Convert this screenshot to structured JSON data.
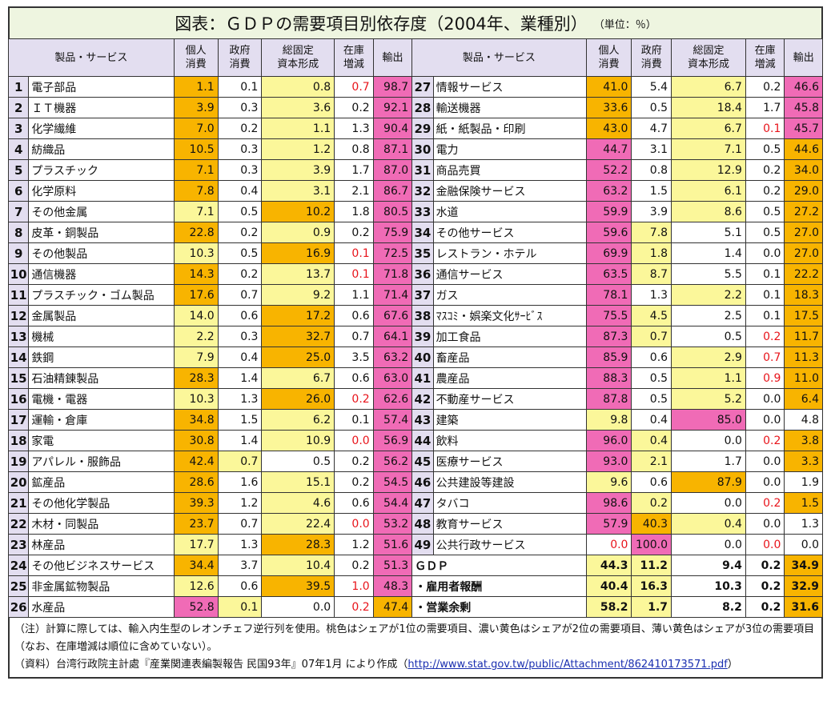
{
  "title": "図表：ＧＤＰの需要項目別依存度（2004年、業種別）",
  "unit": "（単位：％）",
  "headers": {
    "product": "製品・サービス",
    "c1a": "個人",
    "c1b": "消費",
    "c2a": "政府",
    "c2b": "消費",
    "c3a": "総固定",
    "c3b": "資本形成",
    "c4a": "在庫",
    "c4b": "増減",
    "c5": "輸出"
  },
  "colors": {
    "share1": "#f06bb6",
    "share2": "#f8b400",
    "share3": "#fbf79a",
    "negative_text": "#e8141b"
  },
  "left_rows": [
    {
      "no": "1",
      "name": "電子部品",
      "v": [
        "1.1",
        "0.1",
        "0.8",
        "0.7",
        "98.7"
      ],
      "c": [
        "c2",
        "",
        "c3",
        "red",
        "c1"
      ]
    },
    {
      "no": "2",
      "name": "ＩＴ機器",
      "v": [
        "3.9",
        "0.3",
        "3.6",
        "0.2",
        "92.1"
      ],
      "c": [
        "c2",
        "",
        "c3",
        "",
        "c1"
      ]
    },
    {
      "no": "3",
      "name": "化学繊維",
      "v": [
        "7.0",
        "0.2",
        "1.1",
        "1.3",
        "90.4"
      ],
      "c": [
        "c2",
        "",
        "c3",
        "",
        "c1"
      ]
    },
    {
      "no": "4",
      "name": "紡織品",
      "v": [
        "10.5",
        "0.3",
        "1.2",
        "0.8",
        "87.1"
      ],
      "c": [
        "c2",
        "",
        "c3",
        "",
        "c1"
      ]
    },
    {
      "no": "5",
      "name": "プラスチック",
      "v": [
        "7.1",
        "0.3",
        "3.9",
        "1.7",
        "87.0"
      ],
      "c": [
        "c2",
        "",
        "c3",
        "",
        "c1"
      ]
    },
    {
      "no": "6",
      "name": "化学原料",
      "v": [
        "7.8",
        "0.4",
        "3.1",
        "2.1",
        "86.7"
      ],
      "c": [
        "c2",
        "",
        "c3",
        "",
        "c1"
      ]
    },
    {
      "no": "7",
      "name": "その他金属",
      "v": [
        "7.1",
        "0.5",
        "10.2",
        "1.8",
        "80.5"
      ],
      "c": [
        "c3",
        "",
        "c2",
        "",
        "c1"
      ]
    },
    {
      "no": "8",
      "name": "皮革・銅製品",
      "v": [
        "22.8",
        "0.2",
        "0.9",
        "0.2",
        "75.9"
      ],
      "c": [
        "c2",
        "",
        "c3",
        "",
        "c1"
      ]
    },
    {
      "no": "9",
      "name": "その他製品",
      "v": [
        "10.3",
        "0.5",
        "16.9",
        "0.1",
        "72.5"
      ],
      "c": [
        "c3",
        "",
        "c2",
        "red",
        "c1"
      ]
    },
    {
      "no": "10",
      "name": "通信機器",
      "v": [
        "14.3",
        "0.2",
        "13.7",
        "0.1",
        "71.8"
      ],
      "c": [
        "c2",
        "",
        "c3",
        "red",
        "c1"
      ]
    },
    {
      "no": "11",
      "name": "プラスチック・ゴム製品",
      "v": [
        "17.6",
        "0.7",
        "9.2",
        "1.1",
        "71.4"
      ],
      "c": [
        "c2",
        "",
        "c3",
        "",
        "c1"
      ]
    },
    {
      "no": "12",
      "name": "金属製品",
      "v": [
        "14.0",
        "0.6",
        "17.2",
        "0.6",
        "67.6"
      ],
      "c": [
        "c3",
        "",
        "c2",
        "",
        "c1"
      ]
    },
    {
      "no": "13",
      "name": "機械",
      "v": [
        "2.2",
        "0.3",
        "32.7",
        "0.7",
        "64.1"
      ],
      "c": [
        "c3",
        "",
        "c2",
        "",
        "c1"
      ]
    },
    {
      "no": "14",
      "name": "鉄鋼",
      "v": [
        "7.9",
        "0.4",
        "25.0",
        "3.5",
        "63.2"
      ],
      "c": [
        "c3",
        "",
        "c2",
        "",
        "c1"
      ]
    },
    {
      "no": "15",
      "name": "石油精錬製品",
      "v": [
        "28.3",
        "1.4",
        "6.7",
        "0.6",
        "63.0"
      ],
      "c": [
        "c2",
        "",
        "c3",
        "",
        "c1"
      ]
    },
    {
      "no": "16",
      "name": "電機・電器",
      "v": [
        "10.3",
        "1.3",
        "26.0",
        "0.2",
        "62.6"
      ],
      "c": [
        "c3",
        "",
        "c2",
        "red",
        "c1"
      ]
    },
    {
      "no": "17",
      "name": "運輸・倉庫",
      "v": [
        "34.8",
        "1.5",
        "6.2",
        "0.1",
        "57.4"
      ],
      "c": [
        "c2",
        "",
        "c3",
        "",
        "c1"
      ]
    },
    {
      "no": "18",
      "name": "家電",
      "v": [
        "30.8",
        "1.4",
        "10.9",
        "0.0",
        "56.9"
      ],
      "c": [
        "c2",
        "",
        "c3",
        "red",
        "c1"
      ]
    },
    {
      "no": "19",
      "name": "アパレル・服飾品",
      "v": [
        "42.4",
        "0.7",
        "0.5",
        "0.2",
        "56.2"
      ],
      "c": [
        "c2",
        "c3",
        "",
        "",
        "c1"
      ]
    },
    {
      "no": "20",
      "name": "鉱産品",
      "v": [
        "28.6",
        "1.6",
        "15.1",
        "0.2",
        "54.5"
      ],
      "c": [
        "c2",
        "",
        "c3",
        "",
        "c1"
      ]
    },
    {
      "no": "21",
      "name": "その他化学製品",
      "v": [
        "39.3",
        "1.2",
        "4.6",
        "0.6",
        "54.4"
      ],
      "c": [
        "c2",
        "",
        "c3",
        "",
        "c1"
      ]
    },
    {
      "no": "22",
      "name": "木材・同製品",
      "v": [
        "23.7",
        "0.7",
        "22.4",
        "0.0",
        "53.2"
      ],
      "c": [
        "c2",
        "",
        "c3",
        "red",
        "c1"
      ]
    },
    {
      "no": "23",
      "name": "林産品",
      "v": [
        "17.7",
        "1.3",
        "28.3",
        "1.2",
        "51.6"
      ],
      "c": [
        "c3",
        "",
        "c2",
        "",
        "c1"
      ]
    },
    {
      "no": "24",
      "name": "その他ビジネスサービス",
      "v": [
        "34.4",
        "3.7",
        "10.4",
        "0.2",
        "51.3"
      ],
      "c": [
        "c2",
        "",
        "c3",
        "",
        "c1"
      ]
    },
    {
      "no": "25",
      "name": "非金属鉱物製品",
      "v": [
        "12.6",
        "0.6",
        "39.5",
        "1.0",
        "48.3"
      ],
      "c": [
        "c3",
        "",
        "c2",
        "red",
        "c1"
      ]
    },
    {
      "no": "26",
      "name": "水産品",
      "v": [
        "52.8",
        "0.1",
        "0.0",
        "0.2",
        "47.4"
      ],
      "c": [
        "c1",
        "c3",
        "",
        "red",
        "c2"
      ]
    }
  ],
  "right_rows": [
    {
      "no": "27",
      "name": "情報サービス",
      "v": [
        "41.0",
        "5.4",
        "6.7",
        "0.2",
        "46.6"
      ],
      "c": [
        "c2",
        "",
        "c3",
        "",
        "c1"
      ]
    },
    {
      "no": "28",
      "name": "輸送機器",
      "v": [
        "33.6",
        "0.5",
        "18.4",
        "1.7",
        "45.8"
      ],
      "c": [
        "c2",
        "",
        "c3",
        "",
        "c1"
      ]
    },
    {
      "no": "29",
      "name": "紙・紙製品・印刷",
      "v": [
        "43.0",
        "4.7",
        "6.7",
        "0.1",
        "45.7"
      ],
      "c": [
        "c2",
        "",
        "c3",
        "red",
        "c1"
      ]
    },
    {
      "no": "30",
      "name": "電力",
      "v": [
        "44.7",
        "3.1",
        "7.1",
        "0.5",
        "44.6"
      ],
      "c": [
        "c1",
        "",
        "c3",
        "",
        "c2"
      ]
    },
    {
      "no": "31",
      "name": "商品売買",
      "v": [
        "52.2",
        "0.8",
        "12.9",
        "0.2",
        "34.0"
      ],
      "c": [
        "c1",
        "",
        "c3",
        "",
        "c2"
      ]
    },
    {
      "no": "32",
      "name": "金融保険サービス",
      "v": [
        "63.2",
        "1.5",
        "6.1",
        "0.2",
        "29.0"
      ],
      "c": [
        "c1",
        "",
        "c3",
        "",
        "c2"
      ]
    },
    {
      "no": "33",
      "name": "水道",
      "v": [
        "59.9",
        "3.9",
        "8.6",
        "0.5",
        "27.2"
      ],
      "c": [
        "c1",
        "",
        "c3",
        "",
        "c2"
      ]
    },
    {
      "no": "34",
      "name": "その他サービス",
      "v": [
        "59.6",
        "7.8",
        "5.1",
        "0.5",
        "27.0"
      ],
      "c": [
        "c1",
        "c3",
        "",
        "",
        "c2"
      ]
    },
    {
      "no": "35",
      "name": "レストラン・ホテル",
      "v": [
        "69.9",
        "1.8",
        "1.4",
        "0.0",
        "27.0"
      ],
      "c": [
        "c1",
        "c3",
        "",
        "",
        "c2"
      ]
    },
    {
      "no": "36",
      "name": "通信サービス",
      "v": [
        "63.5",
        "8.7",
        "5.5",
        "0.1",
        "22.2"
      ],
      "c": [
        "c1",
        "c3",
        "",
        "",
        "c2"
      ]
    },
    {
      "no": "37",
      "name": "ガス",
      "v": [
        "78.1",
        "1.3",
        "2.2",
        "0.1",
        "18.3"
      ],
      "c": [
        "c1",
        "",
        "c3",
        "",
        "c2"
      ]
    },
    {
      "no": "38",
      "name": "ﾏｽｺﾐ・娯楽文化ｻｰﾋﾞｽ",
      "v": [
        "75.5",
        "4.5",
        "2.5",
        "0.1",
        "17.5"
      ],
      "c": [
        "c1",
        "c3",
        "",
        "",
        "c2"
      ]
    },
    {
      "no": "39",
      "name": "加工食品",
      "v": [
        "87.3",
        "0.7",
        "0.5",
        "0.2",
        "11.7"
      ],
      "c": [
        "c1",
        "c3",
        "",
        "red",
        "c2"
      ]
    },
    {
      "no": "40",
      "name": "畜産品",
      "v": [
        "85.9",
        "0.6",
        "2.9",
        "0.7",
        "11.3"
      ],
      "c": [
        "c1",
        "",
        "c3",
        "red",
        "c2"
      ]
    },
    {
      "no": "41",
      "name": "農産品",
      "v": [
        "88.3",
        "0.5",
        "1.1",
        "0.9",
        "11.0"
      ],
      "c": [
        "c1",
        "",
        "c3",
        "red",
        "c2"
      ]
    },
    {
      "no": "42",
      "name": "不動産サービス",
      "v": [
        "87.8",
        "0.5",
        "5.2",
        "0.0",
        "6.4"
      ],
      "c": [
        "c1",
        "",
        "c3",
        "",
        "c2"
      ]
    },
    {
      "no": "43",
      "name": "建築",
      "v": [
        "9.8",
        "0.4",
        "85.0",
        "0.0",
        "4.8"
      ],
      "c": [
        "c3",
        "",
        "c1",
        "",
        ""
      ]
    },
    {
      "no": "44",
      "name": "飲料",
      "v": [
        "96.0",
        "0.4",
        "0.0",
        "0.2",
        "3.8"
      ],
      "c": [
        "c1",
        "c3",
        "",
        "red",
        "c2"
      ]
    },
    {
      "no": "45",
      "name": "医療サービス",
      "v": [
        "93.0",
        "2.1",
        "1.7",
        "0.0",
        "3.3"
      ],
      "c": [
        "c1",
        "c3",
        "",
        "",
        "c2"
      ]
    },
    {
      "no": "46",
      "name": "公共建設等建設",
      "v": [
        "9.6",
        "0.6",
        "87.9",
        "0.0",
        "1.9"
      ],
      "c": [
        "c3",
        "",
        "c2",
        "",
        ""
      ]
    },
    {
      "no": "47",
      "name": "タバコ",
      "v": [
        "98.6",
        "0.2",
        "0.0",
        "0.2",
        "1.5"
      ],
      "c": [
        "c1",
        "c3",
        "",
        "red",
        "c2"
      ]
    },
    {
      "no": "48",
      "name": "教育サービス",
      "v": [
        "57.9",
        "40.3",
        "0.4",
        "0.0",
        "1.3"
      ],
      "c": [
        "c1",
        "c2",
        "c3",
        "",
        ""
      ]
    },
    {
      "no": "49",
      "name": "公共行政サービス",
      "v": [
        "0.0",
        "100.0",
        "0.0",
        "0.0",
        "0.0"
      ],
      "c": [
        "red",
        "c1",
        "",
        "red",
        ""
      ]
    }
  ],
  "right_summary": [
    {
      "name": "ＧＤＰ",
      "v": [
        "44.3",
        "11.2",
        "9.4",
        "0.2",
        "34.9"
      ],
      "c": [
        "c3",
        "c3",
        "",
        "",
        "c2"
      ]
    },
    {
      "name": "・雇用者報酬",
      "v": [
        "40.4",
        "16.3",
        "10.3",
        "0.2",
        "32.9"
      ],
      "c": [
        "c3",
        "c3",
        "",
        "",
        "c2"
      ]
    },
    {
      "name": "・営業余剰",
      "v": [
        "58.2",
        "1.7",
        "8.2",
        "0.2",
        "31.6"
      ],
      "c": [
        "c3",
        "c3",
        "",
        "",
        "c2"
      ]
    }
  ],
  "notes": {
    "note": "（注）計算に際しては、輸入内生型のレオンチェフ逆行列を使用。桃色はシェアが1位の需要項目、濃い黄色はシェアが2位の需要項目、薄い黄色はシェアが3位の需要項目（なお、在庫増減は順位に含めていない）。",
    "source_prefix": "（資料）台湾行政院主計處『産業関連表編製報告 民国93年』07年1月 により作成（",
    "source_link": "http://www.stat.gov.tw/public/Attachment/862410173571.pdf",
    "source_suffix": "）"
  }
}
